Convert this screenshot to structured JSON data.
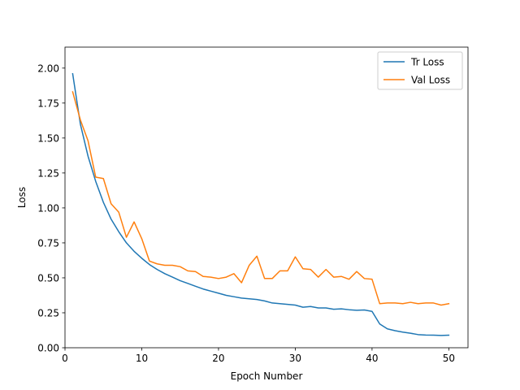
{
  "chart_data": {
    "type": "line",
    "title": "",
    "xlabel": "Epoch Number",
    "ylabel": "Loss",
    "xlim": [
      0,
      52.5
    ],
    "ylim": [
      0,
      2.15
    ],
    "xticks": [
      0,
      10,
      20,
      30,
      40,
      50
    ],
    "xtick_labels": [
      "0",
      "10",
      "20",
      "30",
      "40",
      "50"
    ],
    "yticks": [
      0,
      0.25,
      0.5,
      0.75,
      1.0,
      1.25,
      1.5,
      1.75,
      2.0
    ],
    "ytick_labels": [
      "0.00",
      "0.25",
      "0.50",
      "0.75",
      "1.00",
      "1.25",
      "1.50",
      "1.75",
      "2.00"
    ],
    "grid": false,
    "legend_position": "top-right",
    "x": [
      1,
      2,
      3,
      4,
      5,
      6,
      7,
      8,
      9,
      10,
      11,
      12,
      13,
      14,
      15,
      16,
      17,
      18,
      19,
      20,
      21,
      22,
      23,
      24,
      25,
      26,
      27,
      28,
      29,
      30,
      31,
      32,
      33,
      34,
      35,
      36,
      37,
      38,
      39,
      40,
      41,
      42,
      43,
      44,
      45,
      46,
      47,
      48,
      49,
      50
    ],
    "series": [
      {
        "name": "Tr Loss",
        "color": "#1f77b4",
        "values": [
          1.96,
          1.6,
          1.37,
          1.19,
          1.04,
          0.92,
          0.83,
          0.75,
          0.69,
          0.64,
          0.595,
          0.56,
          0.53,
          0.505,
          0.48,
          0.46,
          0.44,
          0.42,
          0.405,
          0.39,
          0.375,
          0.365,
          0.355,
          0.35,
          0.345,
          0.335,
          0.32,
          0.315,
          0.31,
          0.305,
          0.29,
          0.295,
          0.285,
          0.285,
          0.275,
          0.278,
          0.272,
          0.268,
          0.27,
          0.26,
          0.17,
          0.135,
          0.122,
          0.112,
          0.104,
          0.094,
          0.091,
          0.09,
          0.088,
          0.09
        ]
      },
      {
        "name": "Val Loss",
        "color": "#ff7f0e",
        "values": [
          1.83,
          1.63,
          1.48,
          1.22,
          1.21,
          1.03,
          0.97,
          0.79,
          0.9,
          0.78,
          0.62,
          0.6,
          0.59,
          0.59,
          0.58,
          0.55,
          0.545,
          0.51,
          0.505,
          0.495,
          0.505,
          0.53,
          0.465,
          0.59,
          0.655,
          0.495,
          0.495,
          0.55,
          0.55,
          0.65,
          0.565,
          0.56,
          0.505,
          0.56,
          0.505,
          0.51,
          0.49,
          0.545,
          0.495,
          0.49,
          0.315,
          0.32,
          0.32,
          0.315,
          0.325,
          0.315,
          0.32,
          0.32,
          0.305,
          0.315
        ]
      }
    ]
  }
}
